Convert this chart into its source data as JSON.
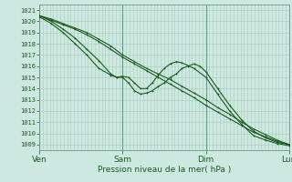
{
  "xlabel": "Pression niveau de la mer( hPa )",
  "bg_color": "#cce8e0",
  "grid_color": "#aaccbb",
  "line_color": "#1a5c20",
  "dark_line_color": "#2a7a30",
  "x_ticks_labels": [
    "Ven",
    "Sam",
    "Dim",
    "Lun"
  ],
  "x_ticks_pos": [
    0,
    0.333,
    0.667,
    1.0
  ],
  "ylim": [
    1008.5,
    1021.5
  ],
  "xlim": [
    0.0,
    1.0
  ],
  "yticks": [
    1009,
    1010,
    1011,
    1012,
    1013,
    1014,
    1015,
    1016,
    1017,
    1018,
    1019,
    1020,
    1021
  ],
  "line1_x": [
    0.0,
    0.048,
    0.095,
    0.143,
    0.19,
    0.238,
    0.286,
    0.333,
    0.381,
    0.429,
    0.476,
    0.524,
    0.571,
    0.619,
    0.667,
    0.714,
    0.762,
    0.81,
    0.857,
    0.905,
    0.952,
    1.0
  ],
  "line1_y": [
    1020.5,
    1020.1,
    1019.7,
    1019.3,
    1018.8,
    1018.2,
    1017.5,
    1016.8,
    1016.2,
    1015.6,
    1015.0,
    1014.4,
    1013.8,
    1013.2,
    1012.5,
    1011.9,
    1011.3,
    1010.7,
    1010.1,
    1009.7,
    1009.3,
    1009.0
  ],
  "line2_x": [
    0.0,
    0.048,
    0.095,
    0.143,
    0.19,
    0.238,
    0.286,
    0.333,
    0.381,
    0.429,
    0.476,
    0.524,
    0.571,
    0.619,
    0.667,
    0.714,
    0.762,
    0.81,
    0.857,
    0.905,
    0.952,
    1.0
  ],
  "line2_y": [
    1020.5,
    1020.2,
    1019.8,
    1019.4,
    1019.0,
    1018.4,
    1017.8,
    1017.0,
    1016.4,
    1015.8,
    1015.3,
    1014.8,
    1014.2,
    1013.6,
    1013.0,
    1012.3,
    1011.7,
    1011.0,
    1010.4,
    1009.9,
    1009.4,
    1009.0
  ],
  "line3_x": [
    0.0,
    0.048,
    0.095,
    0.143,
    0.19,
    0.238,
    0.286,
    0.31,
    0.333,
    0.357,
    0.381,
    0.405,
    0.429,
    0.452,
    0.476,
    0.5,
    0.524,
    0.548,
    0.571,
    0.595,
    0.619,
    0.643,
    0.667,
    0.714,
    0.762,
    0.81,
    0.857,
    0.905,
    0.952,
    1.0
  ],
  "line3_y": [
    1020.5,
    1020.0,
    1019.3,
    1018.5,
    1017.5,
    1016.5,
    1015.3,
    1015.0,
    1015.0,
    1014.5,
    1013.8,
    1013.5,
    1013.6,
    1013.8,
    1014.2,
    1014.5,
    1015.0,
    1015.3,
    1015.8,
    1016.0,
    1016.2,
    1016.0,
    1015.5,
    1014.0,
    1012.5,
    1011.2,
    1010.2,
    1009.6,
    1009.2,
    1009.0
  ],
  "line4_x": [
    0.0,
    0.048,
    0.095,
    0.143,
    0.19,
    0.238,
    0.286,
    0.31,
    0.333,
    0.357,
    0.381,
    0.405,
    0.429,
    0.452,
    0.476,
    0.5,
    0.524,
    0.548,
    0.571,
    0.619,
    0.667,
    0.714,
    0.762,
    0.81,
    0.857,
    0.905,
    0.952,
    1.0
  ],
  "line4_y": [
    1020.4,
    1019.8,
    1019.0,
    1018.0,
    1017.0,
    1015.8,
    1015.2,
    1015.0,
    1015.1,
    1015.0,
    1014.5,
    1014.0,
    1014.0,
    1014.5,
    1015.2,
    1015.8,
    1016.2,
    1016.4,
    1016.3,
    1015.8,
    1015.0,
    1013.5,
    1012.0,
    1010.8,
    1009.8,
    1009.4,
    1009.1,
    1008.9
  ]
}
